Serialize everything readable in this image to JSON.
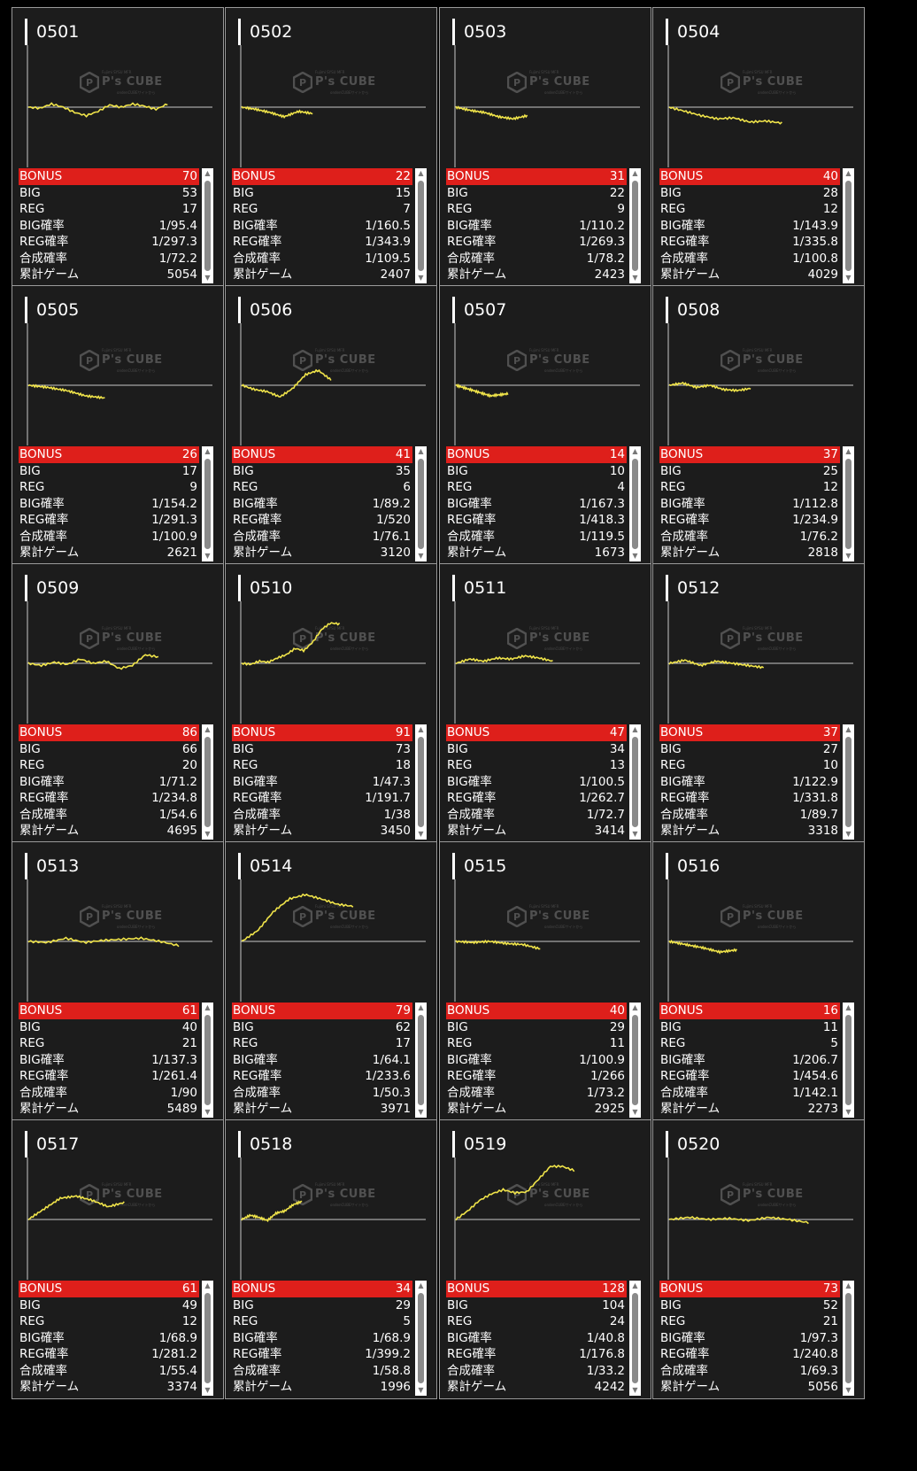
{
  "theme": {
    "card_bg": "#1c1c1c",
    "bonus_bg": "#de1f1b",
    "graph_line": "#f0e44a",
    "baseline": "#c8c8c8",
    "border": "#9a9a9a"
  },
  "watermark": {
    "brand": "P's CUBE",
    "tagline": "Fujimi SYSU MFR",
    "subtitle": "ondenCUBEサイトから"
  },
  "labels": {
    "bonus": "BONUS",
    "big": "BIG",
    "reg": "REG",
    "big_rate": "BIG確率",
    "reg_rate": "REG確率",
    "total_rate": "合成確率",
    "games": "累計ゲーム"
  },
  "icons": {
    "up": "triangle-up",
    "down": "triangle-down",
    "logo": "cube-icon"
  },
  "machines": [
    {
      "id": "0501",
      "bonus": "70",
      "big": "53",
      "reg": "17",
      "big_rate": "1/95.4",
      "reg_rate": "1/297.3",
      "total_rate": "1/72.2",
      "games": "5054"
    },
    {
      "id": "0502",
      "bonus": "22",
      "big": "15",
      "reg": "7",
      "big_rate": "1/160.5",
      "reg_rate": "1/343.9",
      "total_rate": "1/109.5",
      "games": "2407"
    },
    {
      "id": "0503",
      "bonus": "31",
      "big": "22",
      "reg": "9",
      "big_rate": "1/110.2",
      "reg_rate": "1/269.3",
      "total_rate": "1/78.2",
      "games": "2423"
    },
    {
      "id": "0504",
      "bonus": "40",
      "big": "28",
      "reg": "12",
      "big_rate": "1/143.9",
      "reg_rate": "1/335.8",
      "total_rate": "1/100.8",
      "games": "4029"
    },
    {
      "id": "0505",
      "bonus": "26",
      "big": "17",
      "reg": "9",
      "big_rate": "1/154.2",
      "reg_rate": "1/291.3",
      "total_rate": "1/100.9",
      "games": "2621"
    },
    {
      "id": "0506",
      "bonus": "41",
      "big": "35",
      "reg": "6",
      "big_rate": "1/89.2",
      "reg_rate": "1/520",
      "total_rate": "1/76.1",
      "games": "3120"
    },
    {
      "id": "0507",
      "bonus": "14",
      "big": "10",
      "reg": "4",
      "big_rate": "1/167.3",
      "reg_rate": "1/418.3",
      "total_rate": "1/119.5",
      "games": "1673"
    },
    {
      "id": "0508",
      "bonus": "37",
      "big": "25",
      "reg": "12",
      "big_rate": "1/112.8",
      "reg_rate": "1/234.9",
      "total_rate": "1/76.2",
      "games": "2818"
    },
    {
      "id": "0509",
      "bonus": "86",
      "big": "66",
      "reg": "20",
      "big_rate": "1/71.2",
      "reg_rate": "1/234.8",
      "total_rate": "1/54.6",
      "games": "4695"
    },
    {
      "id": "0510",
      "bonus": "91",
      "big": "73",
      "reg": "18",
      "big_rate": "1/47.3",
      "reg_rate": "1/191.7",
      "total_rate": "1/38",
      "games": "3450"
    },
    {
      "id": "0511",
      "bonus": "47",
      "big": "34",
      "reg": "13",
      "big_rate": "1/100.5",
      "reg_rate": "1/262.7",
      "total_rate": "1/72.7",
      "games": "3414"
    },
    {
      "id": "0512",
      "bonus": "37",
      "big": "27",
      "reg": "10",
      "big_rate": "1/122.9",
      "reg_rate": "1/331.8",
      "total_rate": "1/89.7",
      "games": "3318"
    },
    {
      "id": "0513",
      "bonus": "61",
      "big": "40",
      "reg": "21",
      "big_rate": "1/137.3",
      "reg_rate": "1/261.4",
      "total_rate": "1/90",
      "games": "5489"
    },
    {
      "id": "0514",
      "bonus": "79",
      "big": "62",
      "reg": "17",
      "big_rate": "1/64.1",
      "reg_rate": "1/233.6",
      "total_rate": "1/50.3",
      "games": "3971"
    },
    {
      "id": "0515",
      "bonus": "40",
      "big": "29",
      "reg": "11",
      "big_rate": "1/100.9",
      "reg_rate": "1/266",
      "total_rate": "1/73.2",
      "games": "2925"
    },
    {
      "id": "0516",
      "bonus": "16",
      "big": "11",
      "reg": "5",
      "big_rate": "1/206.7",
      "reg_rate": "1/454.6",
      "total_rate": "1/142.1",
      "games": "2273"
    },
    {
      "id": "0517",
      "bonus": "61",
      "big": "49",
      "reg": "12",
      "big_rate": "1/68.9",
      "reg_rate": "1/281.2",
      "total_rate": "1/55.4",
      "games": "3374"
    },
    {
      "id": "0518",
      "bonus": "34",
      "big": "29",
      "reg": "5",
      "big_rate": "1/68.9",
      "reg_rate": "1/399.2",
      "total_rate": "1/58.8",
      "games": "1996"
    },
    {
      "id": "0519",
      "bonus": "128",
      "big": "104",
      "reg": "24",
      "big_rate": "1/40.8",
      "reg_rate": "1/176.8",
      "total_rate": "1/33.2",
      "games": "4242"
    },
    {
      "id": "0520",
      "bonus": "73",
      "big": "52",
      "reg": "21",
      "big_rate": "1/97.3",
      "reg_rate": "1/240.8",
      "total_rate": "1/69.3",
      "games": "5056"
    }
  ],
  "chart_data": [
    {
      "type": "line",
      "title": "0501",
      "series": [
        {
          "values": [
            0,
            -1,
            3,
            0,
            -5,
            -8,
            -4,
            2,
            0,
            3,
            1,
            -2,
            3
          ]
        }
      ]
    },
    {
      "type": "line",
      "title": "0502",
      "series": [
        {
          "values": [
            0,
            -2,
            -5,
            -9,
            -4,
            -6
          ]
        }
      ]
    },
    {
      "type": "line",
      "title": "0503",
      "series": [
        {
          "values": [
            0,
            -3,
            -5,
            -9,
            -11,
            -8
          ]
        }
      ]
    },
    {
      "type": "line",
      "title": "0504",
      "series": [
        {
          "values": [
            0,
            -4,
            -8,
            -11,
            -10,
            -14,
            -13,
            -15
          ]
        }
      ]
    },
    {
      "type": "line",
      "title": "0505",
      "series": [
        {
          "values": [
            0,
            -2,
            -5,
            -10,
            -12
          ]
        }
      ]
    },
    {
      "type": "line",
      "title": "0506",
      "series": [
        {
          "values": [
            0,
            -4,
            -6,
            -11,
            -3,
            10,
            14,
            5
          ]
        }
      ]
    },
    {
      "type": "line",
      "title": "0507",
      "series": [
        {
          "values": [
            0,
            -5,
            -10,
            -8
          ]
        }
      ]
    },
    {
      "type": "line",
      "title": "0508",
      "series": [
        {
          "values": [
            0,
            2,
            -2,
            0,
            -4,
            -5,
            -3
          ]
        }
      ]
    },
    {
      "type": "line",
      "title": "0509",
      "series": [
        {
          "values": [
            0,
            -2,
            1,
            -1,
            4,
            0,
            2,
            -5,
            -2,
            8,
            6
          ]
        }
      ]
    },
    {
      "type": "line",
      "title": "0510",
      "series": [
        {
          "values": [
            0,
            -1,
            2,
            1,
            5,
            8,
            14,
            12,
            20,
            32,
            38,
            37
          ]
        }
      ]
    },
    {
      "type": "line",
      "title": "0511",
      "series": [
        {
          "values": [
            0,
            4,
            2,
            5,
            4,
            7,
            5,
            2
          ]
        }
      ]
    },
    {
      "type": "line",
      "title": "0512",
      "series": [
        {
          "values": [
            0,
            3,
            -2,
            2,
            0,
            -2,
            -4
          ]
        }
      ]
    },
    {
      "type": "line",
      "title": "0513",
      "series": [
        {
          "values": [
            0,
            -1,
            3,
            -1,
            1,
            2,
            3,
            0,
            -4
          ]
        }
      ]
    },
    {
      "type": "line",
      "title": "0514",
      "series": [
        {
          "values": [
            0,
            10,
            28,
            40,
            44,
            40,
            35,
            33
          ]
        }
      ]
    },
    {
      "type": "line",
      "title": "0515",
      "series": [
        {
          "values": [
            0,
            -1,
            0,
            -2,
            -3,
            -7
          ]
        }
      ]
    },
    {
      "type": "line",
      "title": "0516",
      "series": [
        {
          "values": [
            0,
            -3,
            -6,
            -10,
            -8
          ]
        }
      ]
    },
    {
      "type": "line",
      "title": "0517",
      "series": [
        {
          "values": [
            0,
            10,
            20,
            22,
            18,
            12,
            16
          ]
        }
      ]
    },
    {
      "type": "line",
      "title": "0518",
      "series": [
        {
          "values": [
            0,
            4,
            2,
            -1,
            6,
            8,
            14,
            17
          ]
        }
      ]
    },
    {
      "type": "line",
      "title": "0519",
      "series": [
        {
          "values": [
            0,
            8,
            18,
            24,
            28,
            25,
            26,
            38,
            50,
            50,
            46
          ]
        }
      ]
    },
    {
      "type": "line",
      "title": "0520",
      "series": [
        {
          "values": [
            0,
            2,
            0,
            1,
            -1,
            2,
            0,
            -3
          ]
        }
      ]
    }
  ]
}
